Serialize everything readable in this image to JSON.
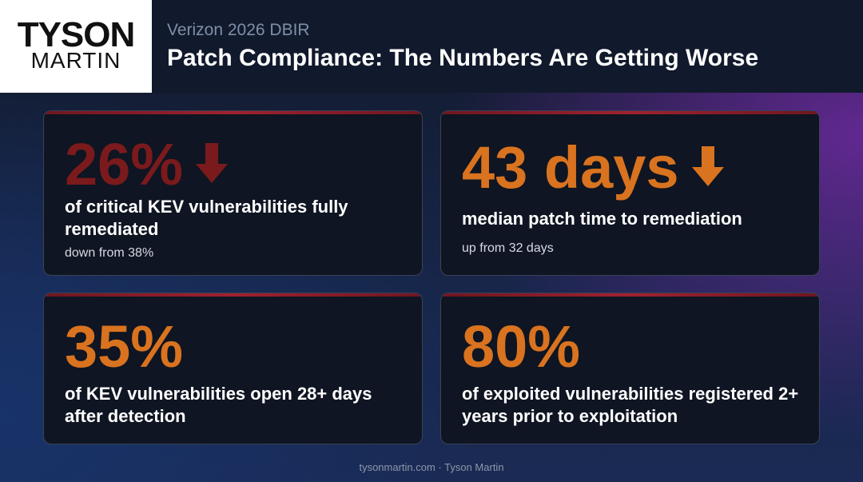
{
  "header": {
    "logo_line1": "TYSON",
    "logo_line2": "MARTIN",
    "subtitle": "Verizon 2026 DBIR",
    "title": "Patch Compliance: The Numbers Are Getting Worse"
  },
  "cards": [
    {
      "value": "26%",
      "value_color": "#7a1a1c",
      "arrow": "down-arrow-icon",
      "label": "of critical KEV vulnerabilities fully remediated",
      "note": "down from 38%"
    },
    {
      "value": "43 days",
      "value_color": "#d9731f",
      "arrow": "down-arrow-icon",
      "label": "median patch time to remediation",
      "note": "up from 32 days"
    },
    {
      "value": "35%",
      "value_color": "#d9731f",
      "label": "of KEV vulnerabilities open 28+ days after detection"
    },
    {
      "value": "80%",
      "value_color": "#d9731f",
      "label": "of exploited vulnerabilities registered 2+ years prior to exploitation"
    }
  ],
  "colors": {
    "accent_red": "#a02130",
    "dark_red": "#7a1a1c",
    "orange": "#d9731f"
  },
  "footer": {
    "text": "tysonmartin.com · Tyson Martin"
  }
}
